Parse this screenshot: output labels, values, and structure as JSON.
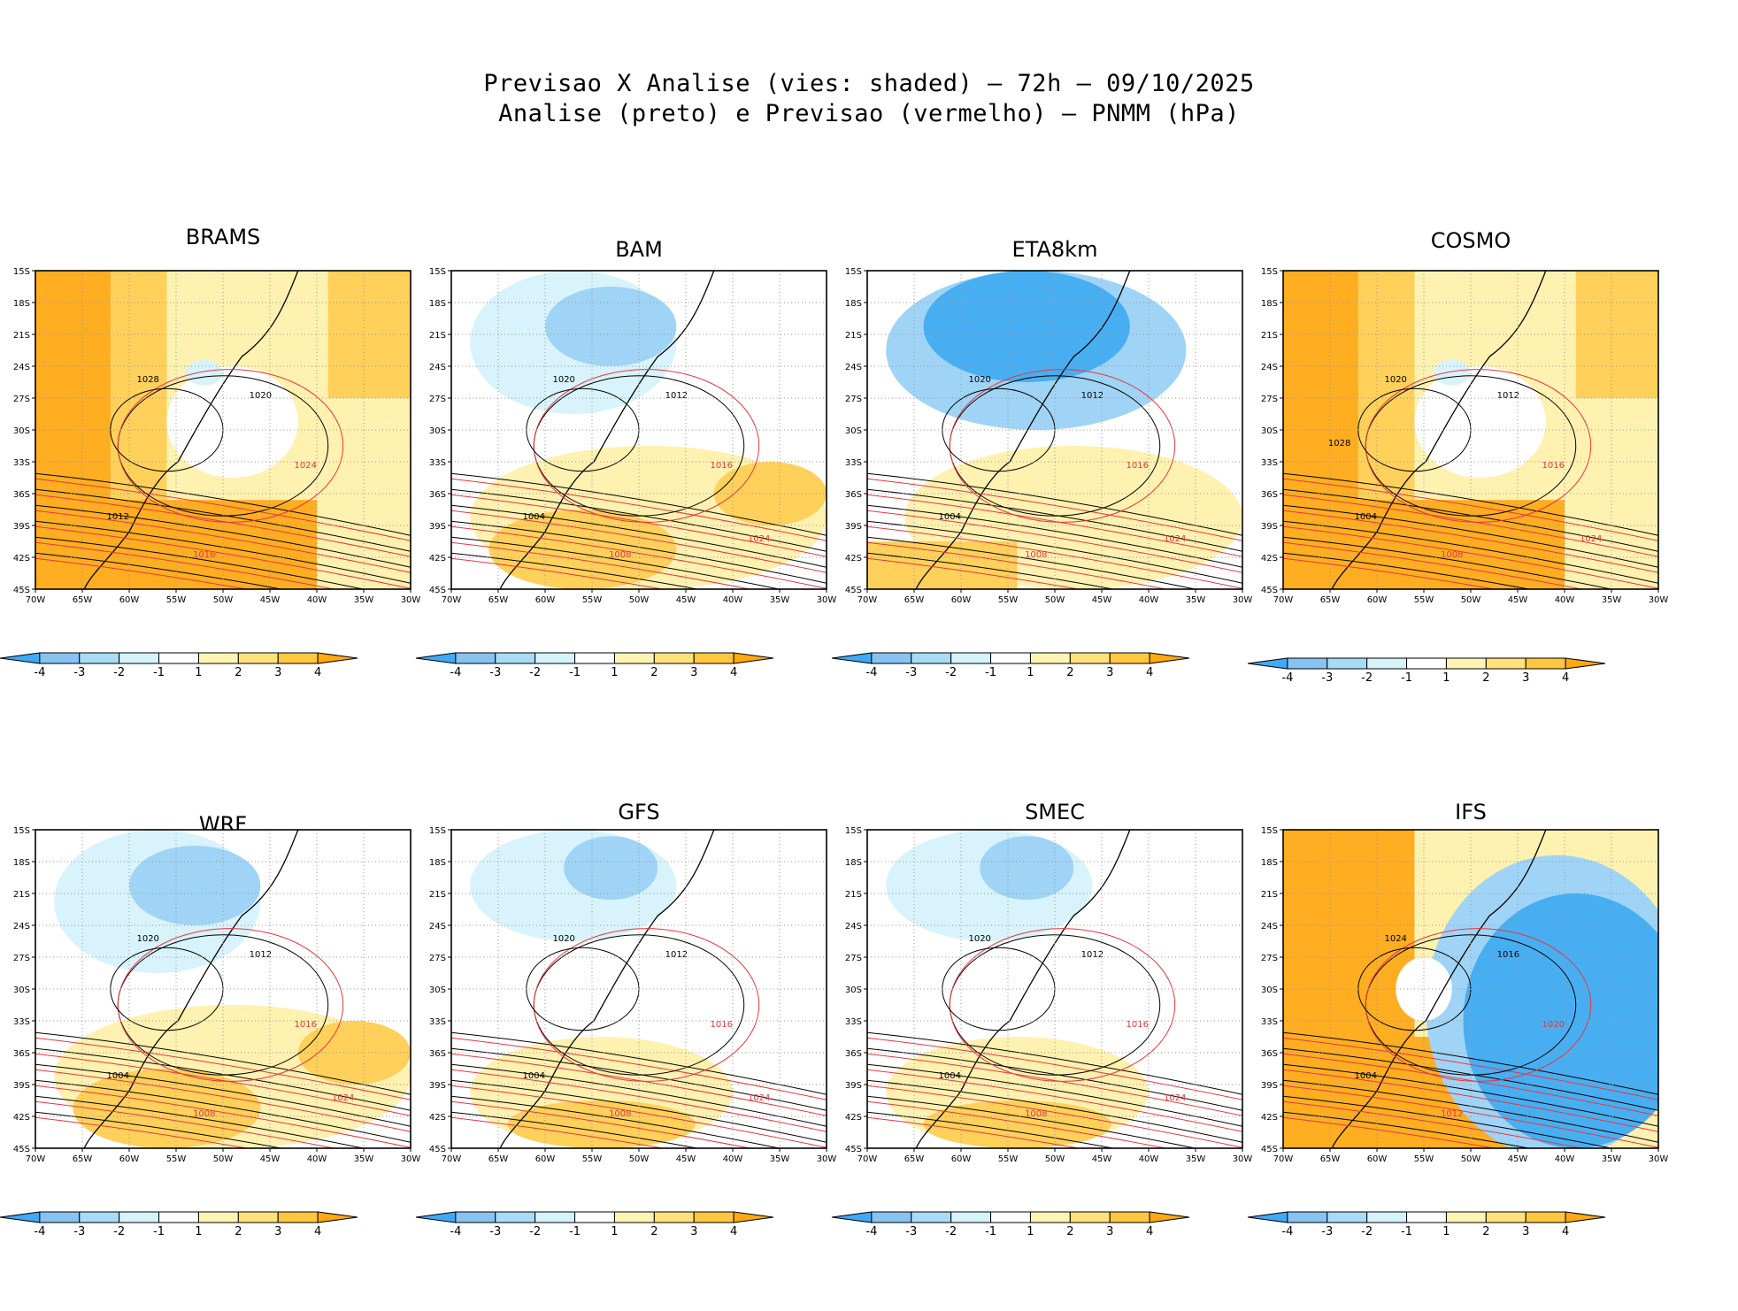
{
  "header": {
    "line1": "Previsao X Analise (vies: shaded) – 72h – 09/10/2025",
    "line2": "Analise (preto) e Previsao (vermelho) – PNMM (hPa)"
  },
  "axes": {
    "lat_labels": [
      "15S",
      "18S",
      "21S",
      "24S",
      "27S",
      "30S",
      "33S",
      "36S",
      "39S",
      "42S",
      "45S"
    ],
    "lon_labels": [
      "70W",
      "65W",
      "60W",
      "55W",
      "50W",
      "45W",
      "40W",
      "35W",
      "30W"
    ]
  },
  "colorbar": {
    "labels": [
      "-4",
      "-3",
      "-2",
      "-1",
      "1",
      "2",
      "3",
      "4"
    ],
    "colors": [
      "#3fa9f5",
      "#86c3f2",
      "#a8dcf5",
      "#d4f4fa",
      "#ffffff",
      "#fff4b3",
      "#ffe27a",
      "#ffc640",
      "#ffa812"
    ]
  },
  "colors": {
    "positive_strong": "#ffad21",
    "positive_mid": "#ffd05a",
    "positive_light": "#fff1b0",
    "negative_strong": "#48aef2",
    "negative_mid": "#9fd4f6",
    "negative_light": "#d8f3fb",
    "analysis_contour": "#000000",
    "forecast_contour": "#e8363d"
  },
  "panels": [
    {
      "name": "BRAMS",
      "contour_labels": [
        "1012",
        "1016",
        "1020",
        "1024",
        "1028"
      ],
      "bias": "warm"
    },
    {
      "name": "BAM",
      "contour_labels": [
        "1004",
        "1008",
        "1012",
        "1016",
        "1020",
        "1024"
      ],
      "bias": "mixed"
    },
    {
      "name": "ETA8km",
      "contour_labels": [
        "1004",
        "1008",
        "1012",
        "1016",
        "1020",
        "1024"
      ],
      "bias": "cold"
    },
    {
      "name": "COSMO",
      "contour_labels": [
        "1004",
        "1008",
        "1012",
        "1016",
        "1020",
        "1024",
        "1028"
      ],
      "bias": "warm"
    },
    {
      "name": "WRF",
      "contour_labels": [
        "1004",
        "1008",
        "1012",
        "1016",
        "1020",
        "1024"
      ],
      "bias": "mixed"
    },
    {
      "name": "GFS",
      "contour_labels": [
        "1004",
        "1008",
        "1012",
        "1016",
        "1020",
        "1024"
      ],
      "bias": "neutral"
    },
    {
      "name": "SMEC",
      "contour_labels": [
        "1004",
        "1008",
        "1012",
        "1016",
        "1020",
        "1024"
      ],
      "bias": "neutral"
    },
    {
      "name": "IFS",
      "contour_labels": [
        "1004",
        "1012",
        "1016",
        "1020",
        "1024"
      ],
      "bias": "dipole"
    }
  ]
}
